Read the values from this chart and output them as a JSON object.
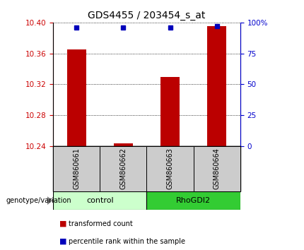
{
  "title": "GDS4455 / 203454_s_at",
  "samples": [
    "GSM860661",
    "GSM860662",
    "GSM860663",
    "GSM860664"
  ],
  "transformed_counts": [
    10.365,
    10.244,
    10.33,
    10.395
  ],
  "percentile_ranks": [
    96,
    96,
    96,
    97
  ],
  "y_min": 10.24,
  "y_max": 10.4,
  "y_ticks": [
    10.24,
    10.28,
    10.32,
    10.36,
    10.4
  ],
  "y_right_ticks": [
    0,
    25,
    50,
    75,
    100
  ],
  "y_right_tick_labels": [
    "0",
    "25",
    "50",
    "75",
    "100%"
  ],
  "bar_color": "#bb0000",
  "dot_color": "#0000bb",
  "groups": [
    {
      "label": "control",
      "indices": [
        0,
        1
      ],
      "color": "#ccffcc"
    },
    {
      "label": "RhoGDI2",
      "indices": [
        2,
        3
      ],
      "color": "#33cc33"
    }
  ],
  "sample_box_color": "#cccccc",
  "title_fontsize": 10,
  "axis_label_color_red": "#cc0000",
  "axis_label_color_blue": "#0000cc",
  "legend_items": [
    {
      "label": "transformed count",
      "color": "#bb0000"
    },
    {
      "label": "percentile rank within the sample",
      "color": "#0000bb"
    }
  ],
  "bar_width": 0.4,
  "dot_size": 5
}
